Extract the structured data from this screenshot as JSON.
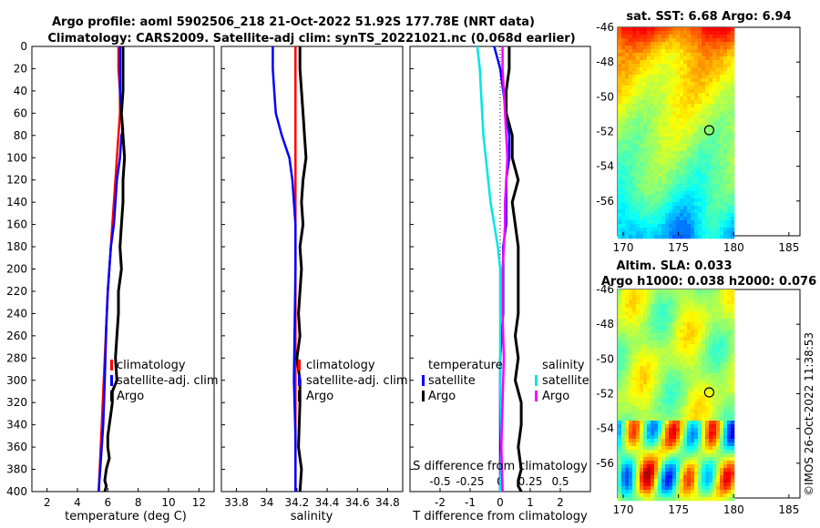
{
  "header": {
    "title_line1": "Argo profile: aoml 5902506_218 21-Oct-2022 51.92S 177.78E (NRT data)",
    "title_line2": "Climatology: CARS2009. Satellite-adj clim: synTS_20221021.nc (0.068d earlier)"
  },
  "stamp": "©IMOS 26-Oct-2022 11:38:53",
  "colors": {
    "climatology": "#ff0000",
    "satellite": "#0000ff",
    "argo": "#000000",
    "sal_satellite": "#00e5e5",
    "sal_argo": "#ff00ff"
  },
  "chart_data": [
    {
      "type": "line",
      "title": "",
      "xlabel": "temperature (deg C)",
      "ylabel": "",
      "xlim": [
        1,
        13
      ],
      "ylim": [
        400,
        0
      ],
      "xticks": [
        "2",
        "4",
        "6",
        "8",
        "10",
        "12"
      ],
      "yticks": [
        "0",
        "20",
        "40",
        "60",
        "80",
        "100",
        "120",
        "140",
        "160",
        "180",
        "200",
        "220",
        "240",
        "260",
        "280",
        "300",
        "320",
        "340",
        "360",
        "380",
        "400"
      ],
      "legend": [
        "climatology",
        "satellite-adj. clim",
        "Argo"
      ],
      "series": [
        {
          "name": "climatology",
          "x": [
            6.7,
            6.7,
            6.8,
            6.8,
            6.7,
            6.6,
            6.5,
            6.4,
            6.3,
            6.2,
            6.1,
            6.0,
            5.9,
            5.8,
            5.7,
            5.6,
            5.5,
            5.4
          ],
          "y": [
            0,
            20,
            40,
            60,
            80,
            100,
            120,
            140,
            160,
            180,
            200,
            220,
            250,
            280,
            310,
            340,
            370,
            400
          ]
        },
        {
          "name": "satellite-adj. clim",
          "x": [
            6.8,
            6.8,
            6.8,
            6.9,
            7.0,
            6.9,
            6.8,
            6.6,
            6.5,
            6.4,
            6.2,
            6.1,
            6.0,
            5.9,
            5.8,
            5.7,
            5.5,
            5.4
          ],
          "y": [
            0,
            20,
            40,
            60,
            75,
            80,
            100,
            120,
            140,
            160,
            180,
            200,
            220,
            250,
            300,
            340,
            380,
            400
          ]
        },
        {
          "name": "Argo",
          "x": [
            7.0,
            7.0,
            7.0,
            6.9,
            7.0,
            7.1,
            7.0,
            7.0,
            6.9,
            6.8,
            6.9,
            6.7,
            6.7,
            6.6,
            6.5,
            6.6,
            6.3,
            6.3,
            6.2,
            6.1,
            6.0,
            6.0,
            6.1,
            6.0,
            5.9,
            5.8,
            5.9,
            5.8
          ],
          "y": [
            0,
            20,
            40,
            60,
            80,
            100,
            120,
            140,
            160,
            180,
            200,
            220,
            240,
            260,
            280,
            300,
            310,
            320,
            330,
            340,
            350,
            360,
            370,
            375,
            380,
            390,
            395,
            400
          ]
        }
      ]
    },
    {
      "type": "line",
      "title": "",
      "xlabel": "salinity",
      "ylabel": "",
      "xlim": [
        33.7,
        34.9
      ],
      "ylim": [
        400,
        0
      ],
      "xticks": [
        "33.8",
        "34",
        "34.2",
        "34.4",
        "34.6",
        "34.8"
      ],
      "legend": [
        "climatology",
        "satellite-adj. clim",
        "Argo"
      ],
      "series": [
        {
          "name": "climatology",
          "x": [
            34.19,
            34.19,
            34.19,
            34.19,
            34.19,
            34.19,
            34.19,
            34.19,
            34.19,
            34.19,
            34.19,
            34.19,
            34.19
          ],
          "y": [
            0,
            40,
            80,
            120,
            160,
            200,
            240,
            280,
            300,
            320,
            360,
            380,
            400
          ]
        },
        {
          "name": "satellite-adj. clim",
          "x": [
            34.04,
            34.04,
            34.05,
            34.06,
            34.08,
            34.1,
            34.15,
            34.17,
            34.18,
            34.19,
            34.19,
            34.18,
            34.19,
            34.19
          ],
          "y": [
            0,
            20,
            40,
            60,
            70,
            80,
            100,
            120,
            140,
            160,
            200,
            300,
            350,
            400
          ]
        },
        {
          "name": "Argo",
          "x": [
            34.22,
            34.22,
            34.23,
            34.24,
            34.25,
            34.26,
            34.24,
            34.23,
            34.24,
            34.22,
            34.23,
            34.21,
            34.22,
            34.2,
            34.22,
            34.22,
            34.21,
            34.23,
            34.22
          ],
          "y": [
            0,
            20,
            40,
            60,
            80,
            100,
            120,
            140,
            160,
            180,
            200,
            240,
            260,
            280,
            300,
            320,
            360,
            380,
            400
          ]
        }
      ]
    },
    {
      "type": "line",
      "title": "",
      "xlabel": "T difference from climatology",
      "ylabel": "",
      "xlim": [
        -3,
        3
      ],
      "ylim": [
        400,
        0
      ],
      "xticks": [
        "-2",
        "-1",
        "0",
        "1",
        "2"
      ],
      "xlabel_top": "S difference from climatology",
      "xticks_top": [
        "-0.5",
        "-0.25",
        "0",
        "0.25",
        "0.5"
      ],
      "xlim_top": [
        -0.75,
        0.75
      ],
      "legend_temperature": [
        "temperature",
        "satellite",
        "Argo"
      ],
      "legend_salinity": [
        "salinity",
        "satellite",
        "Argo"
      ],
      "series": [
        {
          "name": "temperature satellite",
          "x": [
            -0.2,
            -0.1,
            0.0,
            0.1,
            0.2,
            0.3,
            0.3,
            0.2,
            0.2,
            0.2,
            0.1,
            0.1,
            0.1,
            0.0,
            0.0,
            0.0,
            0.0
          ],
          "y": [
            0,
            10,
            20,
            40,
            60,
            80,
            100,
            120,
            140,
            160,
            180,
            200,
            240,
            280,
            320,
            360,
            400
          ]
        },
        {
          "name": "temperature Argo",
          "x": [
            0.3,
            0.3,
            0.2,
            0.2,
            0.4,
            0.4,
            0.6,
            0.4,
            0.5,
            0.6,
            0.6,
            0.6,
            0.6,
            0.5,
            0.6,
            0.5,
            0.7,
            0.7,
            0.6,
            0.7,
            0.6,
            0.6,
            0.7
          ],
          "y": [
            0,
            20,
            40,
            60,
            80,
            100,
            120,
            140,
            160,
            180,
            200,
            220,
            240,
            260,
            280,
            300,
            320,
            340,
            360,
            380,
            390,
            395,
            400
          ]
        },
        {
          "name": "salinity satellite",
          "x": [
            -0.19,
            -0.17,
            -0.16,
            -0.15,
            -0.14,
            -0.12,
            -0.1,
            -0.08,
            -0.05,
            -0.02,
            0.0,
            0.0,
            0.0,
            0.01,
            0.0
          ],
          "y": [
            0,
            20,
            40,
            60,
            80,
            100,
            120,
            140,
            160,
            180,
            200,
            240,
            300,
            360,
            400
          ]
        },
        {
          "name": "salinity Argo",
          "x": [
            0.02,
            0.02,
            0.03,
            0.04,
            0.05,
            0.06,
            0.05,
            0.04,
            0.04,
            0.03,
            0.02,
            0.02,
            0.03,
            0.02,
            0.01,
            0.02
          ],
          "y": [
            0,
            20,
            40,
            60,
            80,
            100,
            120,
            140,
            160,
            180,
            200,
            240,
            280,
            320,
            360,
            400
          ]
        }
      ]
    },
    {
      "type": "heatmap",
      "title": "sat. SST: 6.68 Argo: 6.94",
      "xlim": [
        169.5,
        186
      ],
      "ylim": [
        -58,
        -46
      ],
      "xticks": [
        "170",
        "175",
        "180",
        "185"
      ],
      "yticks": [
        "-46",
        "-48",
        "-50",
        "-52",
        "-54",
        "-56"
      ],
      "marker_lon": 177.78,
      "marker_lat": -51.92
    },
    {
      "type": "heatmap",
      "title": "Altim. SLA: 0.033",
      "subtitle": "Argo h1000: 0.038 h2000: 0.076",
      "xlim": [
        169.5,
        186
      ],
      "ylim": [
        -58,
        -46
      ],
      "xticks": [
        "170",
        "175",
        "180",
        "185"
      ],
      "yticks": [
        "-46",
        "-48",
        "-50",
        "-52",
        "-54",
        "-56"
      ],
      "marker_lon": 177.78,
      "marker_lat": -51.92
    }
  ]
}
